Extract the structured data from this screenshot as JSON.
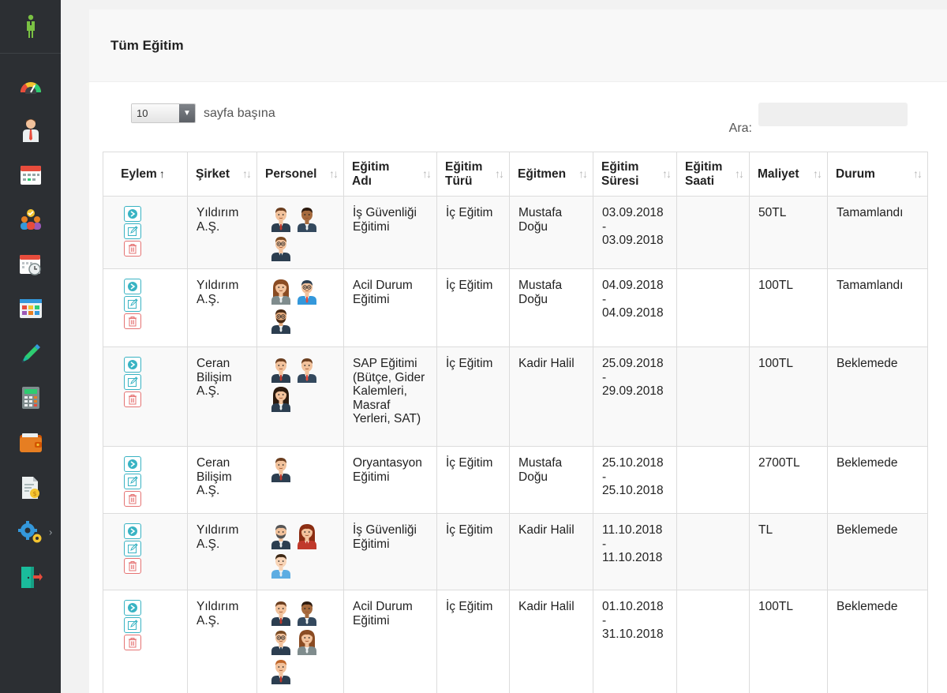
{
  "sidebar": {
    "items": [
      {
        "name": "dashboard-gauge-icon"
      },
      {
        "name": "personnel-icon"
      },
      {
        "name": "calendar-icon"
      },
      {
        "name": "team-icon"
      },
      {
        "name": "schedule-icon"
      },
      {
        "name": "grid-icon"
      },
      {
        "name": "pen-icon"
      },
      {
        "name": "calculator-icon"
      },
      {
        "name": "wallet-icon"
      },
      {
        "name": "invoice-icon"
      },
      {
        "name": "settings-gears-icon"
      },
      {
        "name": "logout-door-icon"
      }
    ]
  },
  "panel": {
    "title": "Tüm Eğitim"
  },
  "controls": {
    "page_size": "10",
    "per_page_label": "sayfa başına",
    "search_label": "Ara:",
    "search_value": ""
  },
  "table": {
    "columns": [
      "Eylem",
      "Şirket",
      "Personel",
      "Eğitim Adı",
      "Eğitim Türü",
      "Eğitmen",
      "Eğitim Süresi",
      "Eğitim Saati",
      "Maliyet",
      "Durum"
    ],
    "rows": [
      {
        "sirket": "Yıldırım A.Ş.",
        "avatars": [
          "man-brown",
          "man-dark",
          "man-glasses"
        ],
        "egitim_adi": "İş Güvenliği Eğitimi",
        "tur": "İç Eğitim",
        "egitmen": "Mustafa Doğu",
        "sure": "03.09.2018\n-\n03.09.2018",
        "saat": "",
        "maliyet": "50TL",
        "durum": "Tamamlandı"
      },
      {
        "sirket": "Yıldırım A.Ş.",
        "avatars": [
          "woman-brown",
          "man-thinking",
          "man-beard"
        ],
        "egitim_adi": "Acil Durum Eğitimi",
        "tur": "İç Eğitim",
        "egitmen": "Mustafa Doğu",
        "sure": "04.09.2018\n-\n04.09.2018",
        "saat": "",
        "maliyet": "100TL",
        "durum": "Tamamlandı"
      },
      {
        "sirket": "Ceran Bilişim A.Ş.",
        "avatars": [
          "man-brown",
          "man-red-tie",
          "woman-dark"
        ],
        "egitim_adi": "SAP Eğitimi (Bütçe, Gider Kalemleri, Masraf Yerleri, SAT)",
        "tur": "İç Eğitim",
        "egitmen": "Kadir Halil",
        "sure": "25.09.2018\n-\n29.09.2018",
        "saat": "",
        "maliyet": "100TL",
        "durum": "Beklemede"
      },
      {
        "sirket": "Ceran Bilişim A.Ş.",
        "avatars": [
          "man-brown"
        ],
        "egitim_adi": "Oryantasyon Eğitimi",
        "tur": "İç Eğitim",
        "egitmen": "Mustafa Doğu",
        "sure": "25.10.2018\n-\n25.10.2018",
        "saat": "",
        "maliyet": "2700TL",
        "durum": "Beklemede"
      },
      {
        "sirket": "Yıldırım A.Ş.",
        "avatars": [
          "man-mustache",
          "woman-red",
          "man-light"
        ],
        "egitim_adi": "İş Güvenliği Eğitimi",
        "tur": "İç Eğitim",
        "egitmen": "Kadir Halil",
        "sure": "11.10.2018\n-\n11.10.2018",
        "saat": "",
        "maliyet": "TL",
        "durum": "Beklemede"
      },
      {
        "sirket": "Yıldırım A.Ş.",
        "avatars": [
          "man-brown",
          "man-dark",
          "man-glasses",
          "woman-brown",
          "man-ginger"
        ],
        "egitim_adi": "Acil Durum Eğitimi",
        "tur": "İç Eğitim",
        "egitmen": "Kadir Halil",
        "sure": "01.10.2018\n-\n31.10.2018",
        "saat": "",
        "maliyet": "100TL",
        "durum": "Beklemede"
      }
    ]
  },
  "colors": {
    "sidebar_bg": "#2c2f33",
    "accent": "#39b3c3",
    "danger": "#e57373",
    "logo_green": "#7ac143"
  }
}
